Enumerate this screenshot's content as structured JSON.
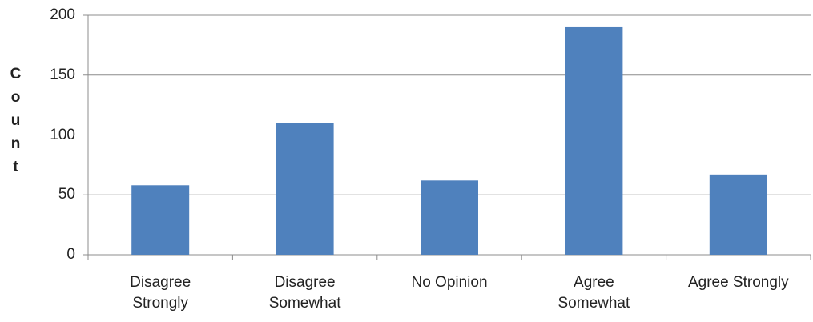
{
  "chart_data": {
    "type": "bar",
    "ylabel": "Count",
    "categories": [
      "Disagree\nStrongly",
      "Disagree\nSomewhat",
      "No Opinion",
      "Agree\nSomewhat",
      "Agree Strongly"
    ],
    "values": [
      58,
      110,
      62,
      190,
      67
    ],
    "color": "#4f81bd",
    "ylim": [
      0,
      200
    ],
    "yticks": [
      0,
      50,
      100,
      150,
      200
    ],
    "grid": true
  }
}
